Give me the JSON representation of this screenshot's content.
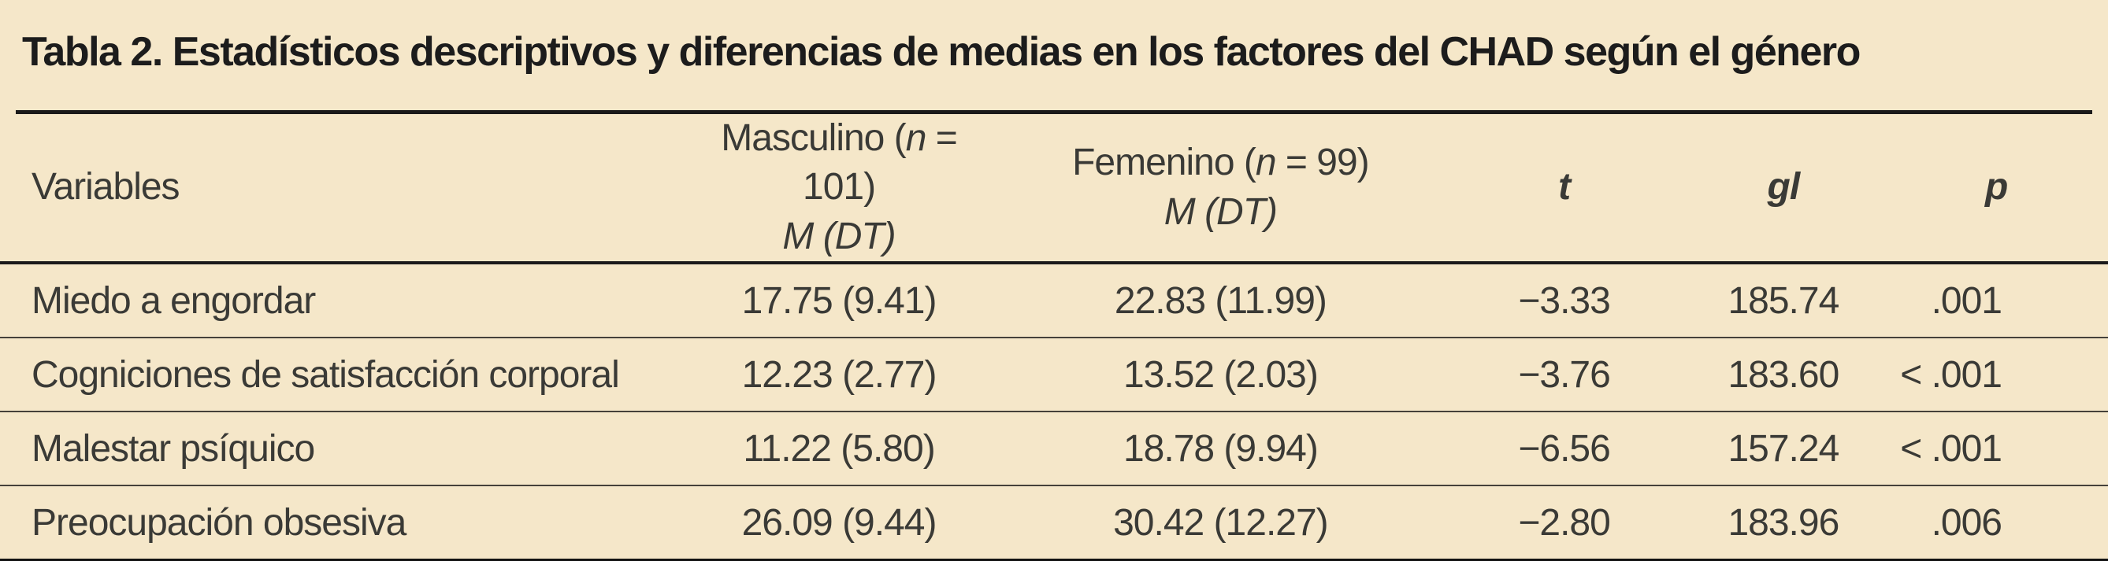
{
  "page": {
    "title": "Tabla 2. Estadísticos descriptivos y diferencias de medias en los factores del CHAD según el género"
  },
  "colors": {
    "background": "#f5e7c9",
    "title_text": "#1c1c1c",
    "body_text": "#3a3a36",
    "rule_heavy": "#1a1a1a",
    "rule_light": "#45413a"
  },
  "table": {
    "header": {
      "variables": "Variables",
      "masculino": {
        "prefix": "Masculino (",
        "n": "n",
        "suffix": " = 101)",
        "subline": "M (DT)"
      },
      "femenino": {
        "prefix": "Femenino (",
        "n": "n",
        "suffix": " = 99)",
        "subline": "M (DT)"
      },
      "t": "t",
      "gl": "gl",
      "p": "p"
    },
    "rows": [
      {
        "variable": "Miedo a engordar",
        "masculino": "17.75 (9.41)",
        "femenino": "22.83 (11.99)",
        "t": "−3.33",
        "gl": "185.74",
        "p": ".001"
      },
      {
        "variable": "Cogniciones de satisfacción corporal",
        "masculino": "12.23 (2.77)",
        "femenino": "13.52 (2.03)",
        "t": "−3.76",
        "gl": "183.60",
        "p": "< .001"
      },
      {
        "variable": "Malestar psíquico",
        "masculino": "11.22 (5.80)",
        "femenino": "18.78 (9.94)",
        "t": "−6.56",
        "gl": "157.24",
        "p": "< .001"
      },
      {
        "variable": "Preocupación obsesiva",
        "masculino": "26.09 (9.44)",
        "femenino": "30.42 (12.27)",
        "t": "−2.80",
        "gl": "183.96",
        "p": ".006"
      }
    ]
  }
}
